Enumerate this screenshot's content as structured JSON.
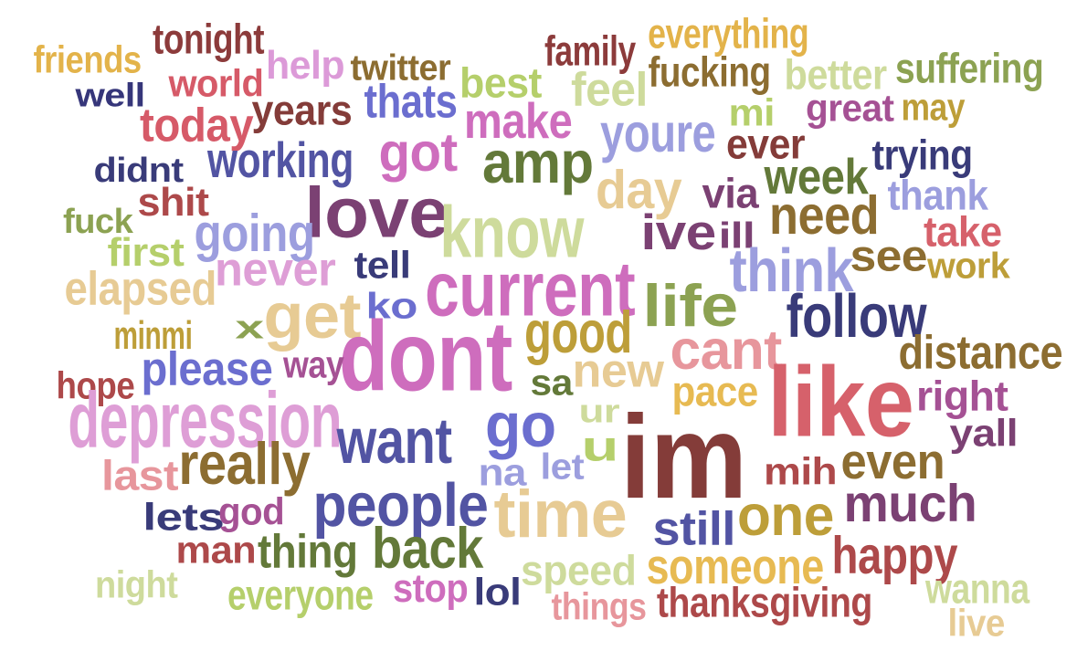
{
  "words": [
    {
      "text": "friends",
      "color": "#e3b34a"
    },
    {
      "text": "tonight",
      "color": "#8c3b3b"
    },
    {
      "text": "family",
      "color": "#8c3b3b"
    },
    {
      "text": "everything",
      "color": "#e3b34a"
    },
    {
      "text": "well",
      "color": "#36367a"
    },
    {
      "text": "world",
      "color": "#d65a68"
    },
    {
      "text": "help",
      "color": "#dc9ad8"
    },
    {
      "text": "twitter",
      "color": "#8c6d31"
    },
    {
      "text": "best",
      "color": "#b5cf6b"
    },
    {
      "text": "fucking",
      "color": "#8c6d31"
    },
    {
      "text": "better",
      "color": "#cedb9c"
    },
    {
      "text": "suffering",
      "color": "#8ca252"
    },
    {
      "text": "today",
      "color": "#d65a68"
    },
    {
      "text": "years",
      "color": "#843c39"
    },
    {
      "text": "thats",
      "color": "#6b6ecf"
    },
    {
      "text": "make",
      "color": "#ce6dbd"
    },
    {
      "text": "feel",
      "color": "#cedb9c"
    },
    {
      "text": "mi",
      "color": "#b5cf6b"
    },
    {
      "text": "great",
      "color": "#a55194"
    },
    {
      "text": "may",
      "color": "#bd9e39"
    },
    {
      "text": "youre",
      "color": "#9c9ede"
    },
    {
      "text": "ever",
      "color": "#843c39"
    },
    {
      "text": "didnt",
      "color": "#393b79"
    },
    {
      "text": "working",
      "color": "#5254a3"
    },
    {
      "text": "got",
      "color": "#ce6dbd"
    },
    {
      "text": "amp",
      "color": "#637939"
    },
    {
      "text": "trying",
      "color": "#393b79"
    },
    {
      "text": "week",
      "color": "#637939"
    },
    {
      "text": "shit",
      "color": "#ad494a"
    },
    {
      "text": "love",
      "color": "#7b4173"
    },
    {
      "text": "day",
      "color": "#e7cb94"
    },
    {
      "text": "via",
      "color": "#7b4173"
    },
    {
      "text": "thank",
      "color": "#9c9ede"
    },
    {
      "text": "fuck",
      "color": "#8ca252"
    },
    {
      "text": "know",
      "color": "#cedb9c"
    },
    {
      "text": "going",
      "color": "#9c9ede"
    },
    {
      "text": "need",
      "color": "#8c6d31"
    },
    {
      "text": "ive",
      "color": "#7b4173"
    },
    {
      "text": "ill",
      "color": "#7b4173"
    },
    {
      "text": "take",
      "color": "#d6616b"
    },
    {
      "text": "first",
      "color": "#b5cf6b"
    },
    {
      "text": "tell",
      "color": "#393b79"
    },
    {
      "text": "see",
      "color": "#8c6d31"
    },
    {
      "text": "work",
      "color": "#bd9e39"
    },
    {
      "text": "current",
      "color": "#ce6dbd"
    },
    {
      "text": "think",
      "color": "#9c9ede"
    },
    {
      "text": "never",
      "color": "#de9ed6"
    },
    {
      "text": "elapsed",
      "color": "#e7cb94"
    },
    {
      "text": "get",
      "color": "#e7cb94"
    },
    {
      "text": "ko",
      "color": "#6b6ecf"
    },
    {
      "text": "life",
      "color": "#8ca252"
    },
    {
      "text": "follow",
      "color": "#393b79"
    },
    {
      "text": "minmi",
      "color": "#bd9e39"
    },
    {
      "text": "x",
      "color": "#8ca252"
    },
    {
      "text": "good",
      "color": "#bd9e39"
    },
    {
      "text": "dont",
      "color": "#ce6dbd"
    },
    {
      "text": "cant",
      "color": "#e7969c"
    },
    {
      "text": "distance",
      "color": "#8c6d31"
    },
    {
      "text": "hope",
      "color": "#ad494a"
    },
    {
      "text": "please",
      "color": "#6b6ecf"
    },
    {
      "text": "way",
      "color": "#a55194"
    },
    {
      "text": "new",
      "color": "#e7cb94"
    },
    {
      "text": "sa",
      "color": "#637939"
    },
    {
      "text": "pace",
      "color": "#e7ba52"
    },
    {
      "text": "right",
      "color": "#a55194"
    },
    {
      "text": "depression",
      "color": "#de9ed6"
    },
    {
      "text": "like",
      "color": "#d6616b"
    },
    {
      "text": "ur",
      "color": "#cedb9c"
    },
    {
      "text": "want",
      "color": "#5254a3"
    },
    {
      "text": "go",
      "color": "#6b6ecf"
    },
    {
      "text": "u",
      "color": "#b5cf6b"
    },
    {
      "text": "yall",
      "color": "#7b4173"
    },
    {
      "text": "really",
      "color": "#8c6d31"
    },
    {
      "text": "im",
      "color": "#843c39"
    },
    {
      "text": "na",
      "color": "#9c9ede"
    },
    {
      "text": "let",
      "color": "#9c9ede"
    },
    {
      "text": "even",
      "color": "#8c6d31"
    },
    {
      "text": "last",
      "color": "#e7969c"
    },
    {
      "text": "mih",
      "color": "#ad494a"
    },
    {
      "text": "people",
      "color": "#5254a3"
    },
    {
      "text": "time",
      "color": "#e7cb94"
    },
    {
      "text": "one",
      "color": "#bd9e39"
    },
    {
      "text": "much",
      "color": "#7b4173"
    },
    {
      "text": "lets",
      "color": "#393b79"
    },
    {
      "text": "god",
      "color": "#a55194"
    },
    {
      "text": "still",
      "color": "#5254a3"
    },
    {
      "text": "man",
      "color": "#ad494a"
    },
    {
      "text": "thing",
      "color": "#637939"
    },
    {
      "text": "back",
      "color": "#637939"
    },
    {
      "text": "happy",
      "color": "#ad494a"
    },
    {
      "text": "speed",
      "color": "#cedb9c"
    },
    {
      "text": "someone",
      "color": "#e7ba52"
    },
    {
      "text": "night",
      "color": "#cedb9c"
    },
    {
      "text": "everyone",
      "color": "#b5cf6b"
    },
    {
      "text": "stop",
      "color": "#ce6dbd"
    },
    {
      "text": "lol",
      "color": "#393b79"
    },
    {
      "text": "things",
      "color": "#e7969c"
    },
    {
      "text": "thanksgiving",
      "color": "#ad494a"
    },
    {
      "text": "wanna",
      "color": "#cedb9c"
    },
    {
      "text": "live",
      "color": "#e7cb94"
    }
  ]
}
